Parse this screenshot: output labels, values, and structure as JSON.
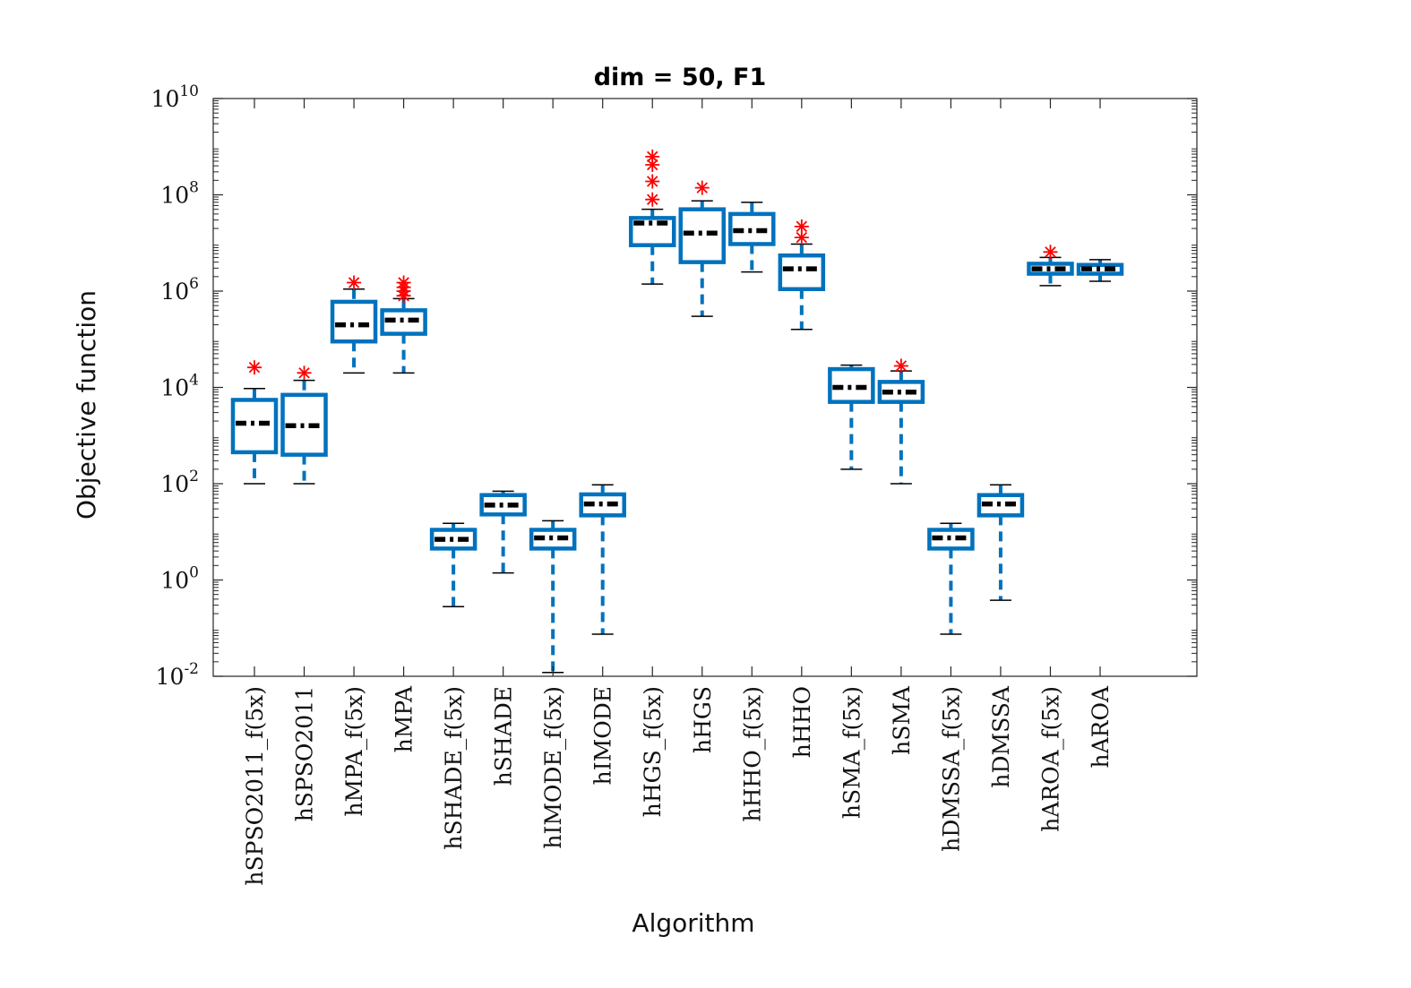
{
  "chart_data": {
    "type": "boxplot",
    "title": "dim = 50,  F1",
    "xlabel": "Algorithm",
    "ylabel": "Objective function",
    "yscale": "log",
    "ylim": [
      0.01,
      10000000000
    ],
    "yticks": [
      {
        "base": "10",
        "exp": "-2",
        "value": 0.01
      },
      {
        "base": "10",
        "exp": "0",
        "value": 1
      },
      {
        "base": "10",
        "exp": "2",
        "value": 100
      },
      {
        "base": "10",
        "exp": "4",
        "value": 10000
      },
      {
        "base": "10",
        "exp": "6",
        "value": 1000000
      },
      {
        "base": "10",
        "exp": "8",
        "value": 100000000
      },
      {
        "base": "10",
        "exp": "10",
        "value": 10000000000
      }
    ],
    "colors": {
      "box": "#0072BD",
      "median": "#000000",
      "outlier": "#FF0000",
      "axis": "#262626"
    },
    "boxes": [
      {
        "label": "hSPSO2011_f(5x)",
        "whisker_low": 100,
        "q1": 450,
        "median": 1800,
        "q3": 5500,
        "whisker_high": 9500,
        "outliers": [
          26000
        ]
      },
      {
        "label": "hSPSO2011",
        "whisker_low": 100,
        "q1": 400,
        "median": 1600,
        "q3": 7000,
        "whisker_high": 14000,
        "outliers": [
          20000
        ]
      },
      {
        "label": "hMPA_f(5x)",
        "whisker_low": 20000,
        "q1": 90000,
        "median": 200000,
        "q3": 600000,
        "whisker_high": 1100000,
        "outliers": [
          1500000
        ]
      },
      {
        "label": "hMPA",
        "whisker_low": 20000,
        "q1": 130000,
        "median": 250000,
        "q3": 400000,
        "whisker_high": 700000,
        "outliers": [
          800000,
          1000000,
          1200000,
          1500000
        ]
      },
      {
        "label": "hSHADE_f(5x)",
        "whisker_low": 0.28,
        "q1": 4.5,
        "median": 7,
        "q3": 11,
        "whisker_high": 15,
        "outliers": []
      },
      {
        "label": "hSHADE",
        "whisker_low": 1.4,
        "q1": 23,
        "median": 36,
        "q3": 58,
        "whisker_high": 70,
        "outliers": []
      },
      {
        "label": "hIMODE_f(5x)",
        "whisker_low": 0.012,
        "q1": 4.5,
        "median": 7.5,
        "q3": 11,
        "whisker_high": 17,
        "outliers": []
      },
      {
        "label": "hIMODE",
        "whisker_low": 0.075,
        "q1": 22,
        "median": 38,
        "q3": 60,
        "whisker_high": 95,
        "outliers": []
      },
      {
        "label": "hHGS_f(5x)",
        "whisker_low": 1400000,
        "q1": 9000000,
        "median": 26000000,
        "q3": 33000000,
        "whisker_high": 50000000,
        "outliers": [
          80000000,
          190000000,
          420000000,
          620000000
        ]
      },
      {
        "label": "hHGS",
        "whisker_low": 300000,
        "q1": 4000000,
        "median": 16000000,
        "q3": 50000000,
        "whisker_high": 75000000,
        "outliers": [
          140000000
        ]
      },
      {
        "label": "hHHO_f(5x)",
        "whisker_low": 2500000,
        "q1": 9500000,
        "median": 18000000,
        "q3": 40000000,
        "whisker_high": 70000000,
        "outliers": []
      },
      {
        "label": "hHHO",
        "whisker_low": 160000,
        "q1": 1100000,
        "median": 2900000,
        "q3": 5500000,
        "whisker_high": 9500000,
        "outliers": [
          13000000,
          22000000
        ]
      },
      {
        "label": "hSMA_f(5x)",
        "whisker_low": 200,
        "q1": 5000,
        "median": 10000,
        "q3": 24000,
        "whisker_high": 29000,
        "outliers": []
      },
      {
        "label": "hSMA",
        "whisker_low": 100,
        "q1": 5000,
        "median": 8000,
        "q3": 13000,
        "whisker_high": 22000,
        "outliers": [
          28000
        ]
      },
      {
        "label": "hDMSSA_f(5x)",
        "whisker_low": 0.075,
        "q1": 4.5,
        "median": 7.5,
        "q3": 11,
        "whisker_high": 15,
        "outliers": []
      },
      {
        "label": "hDMSSA",
        "whisker_low": 0.38,
        "q1": 22,
        "median": 38,
        "q3": 58,
        "whisker_high": 95,
        "outliers": []
      },
      {
        "label": "hAROA_f(5x)",
        "whisker_low": 1300000,
        "q1": 2300000,
        "median": 2900000,
        "q3": 3700000,
        "whisker_high": 5000000,
        "outliers": [
          6500000
        ]
      },
      {
        "label": "hAROA",
        "whisker_low": 1600000,
        "q1": 2300000,
        "median": 2900000,
        "q3": 3500000,
        "whisker_high": 4500000,
        "outliers": []
      }
    ]
  }
}
